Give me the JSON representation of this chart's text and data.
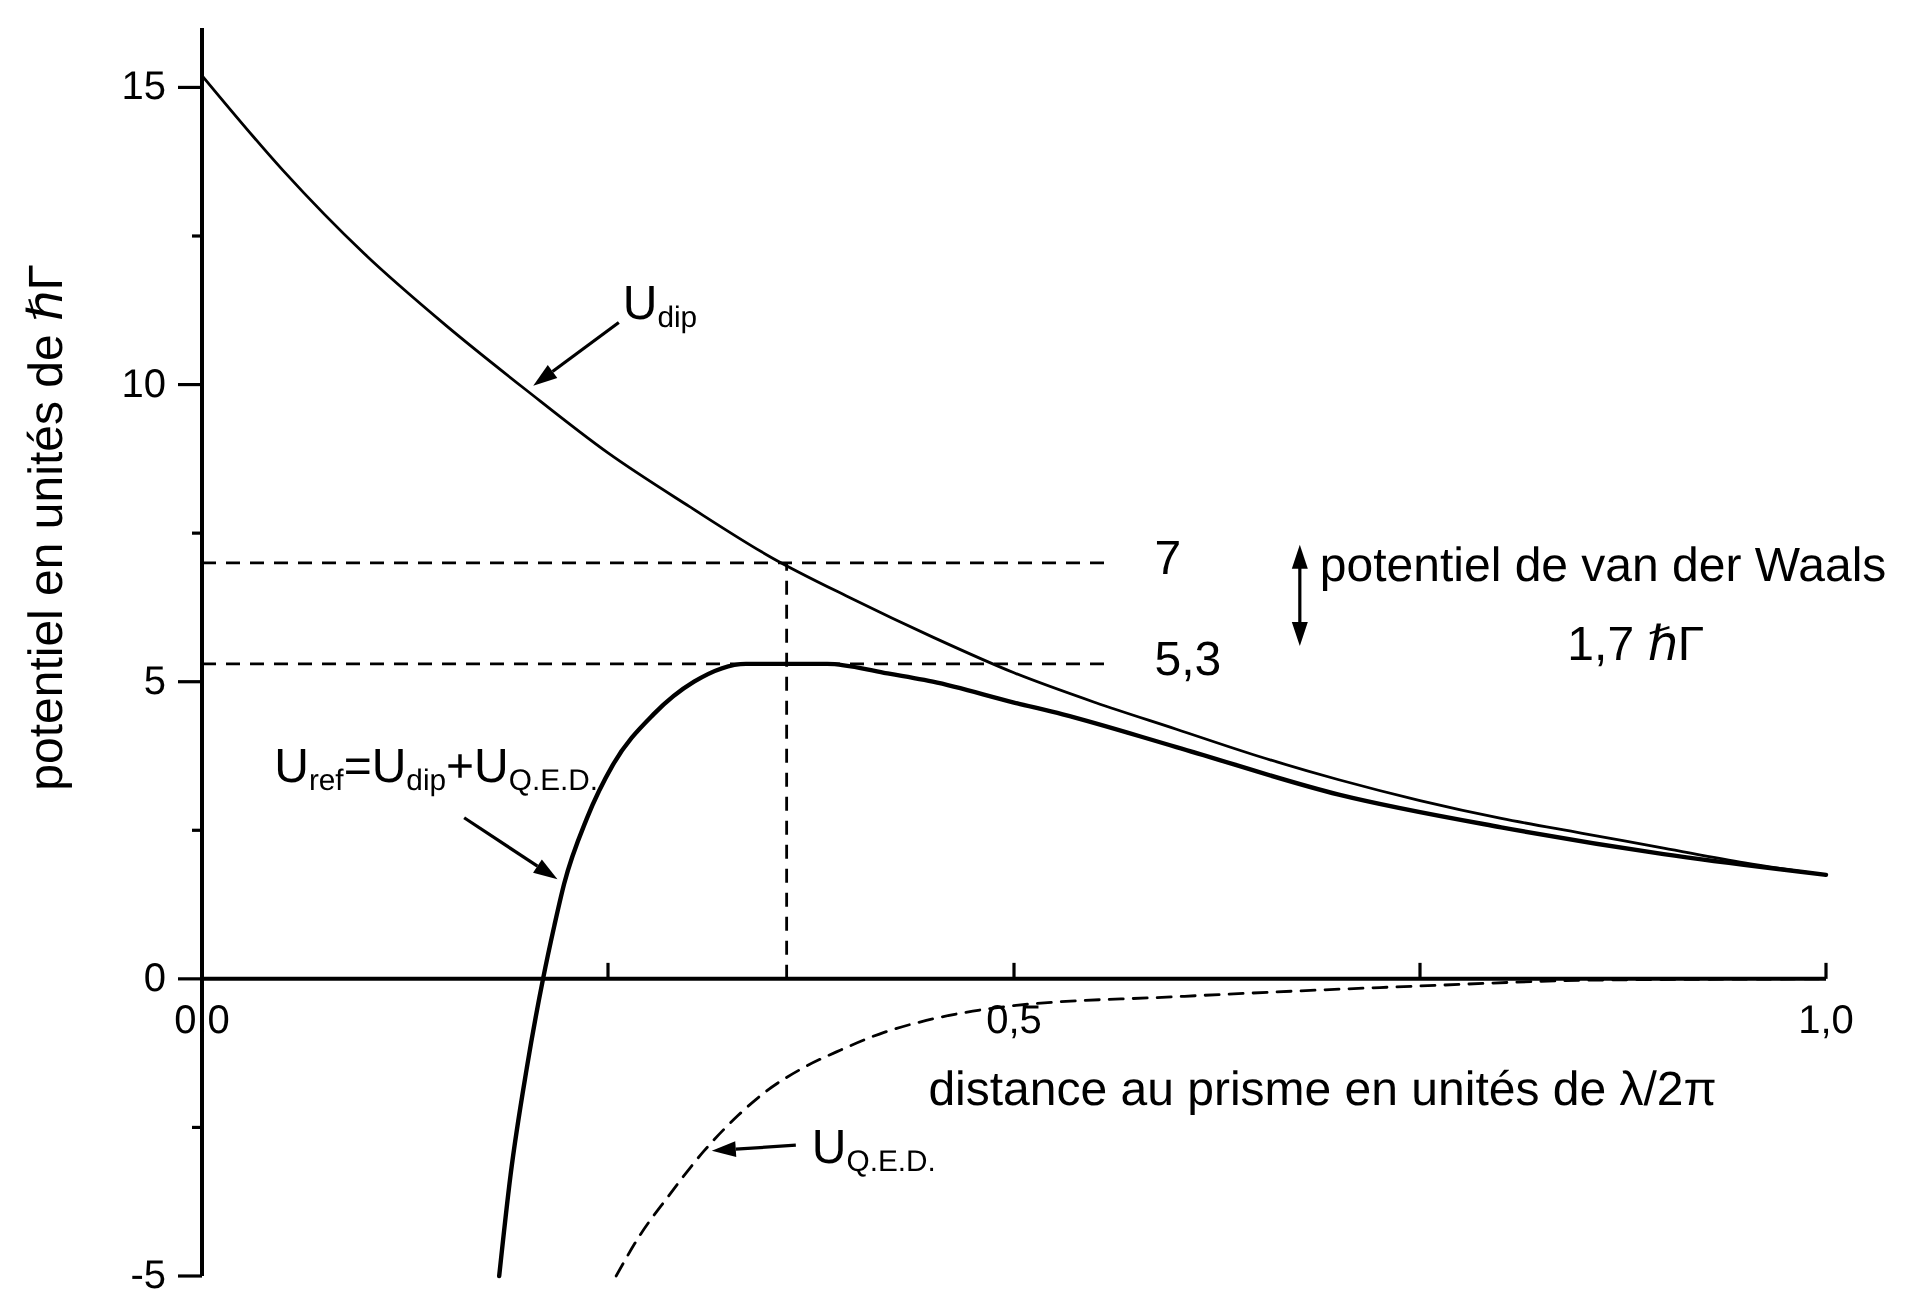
{
  "chart_data": {
    "type": "line",
    "xlabel": "distance au prisme en unités de λ/2π",
    "ylabel": "potentiel en unités de ℏΓ",
    "xlim": [
      0,
      1.0
    ],
    "xticks": [
      {
        "value": 0,
        "label": "0,0"
      },
      {
        "value": 0.25,
        "label": null
      },
      {
        "value": 0.5,
        "label": "0,5"
      },
      {
        "value": 0.75,
        "label": null
      },
      {
        "value": 1.0,
        "label": "1,0"
      }
    ],
    "ylim": [
      -5,
      16
    ],
    "yticks": [
      -5,
      {
        "value": -2.5,
        "label": null
      },
      0,
      {
        "value": 2.5,
        "label": null
      },
      5,
      {
        "value": 7.5,
        "label": null
      },
      10,
      {
        "value": 12.5,
        "label": null
      },
      15
    ],
    "series": [
      {
        "name": "U$_{dip}$",
        "color": "#000000",
        "x": [
          0,
          0.05,
          0.1,
          0.15,
          0.2,
          0.25,
          0.3,
          0.35,
          0.4,
          0.45,
          0.5,
          0.55,
          0.6,
          0.65,
          0.7,
          0.75,
          0.8,
          0.85,
          0.9,
          0.95,
          1.0
        ],
        "values": [
          15.2,
          13.6,
          12.2,
          11.0,
          9.9,
          8.85,
          7.95,
          7.1,
          6.4,
          5.75,
          5.15,
          4.65,
          4.2,
          3.75,
          3.35,
          3.0,
          2.7,
          2.45,
          2.2,
          1.95,
          1.75
        ]
      },
      {
        "name": "U$_{ref}$=U$_{dip}$+U$_{Q.E.D.}$",
        "color": "#000000",
        "x": [
          0.183,
          0.19,
          0.2,
          0.21,
          0.217,
          0.223,
          0.237,
          0.253,
          0.278,
          0.303,
          0.335,
          0.36,
          0.385,
          0.42,
          0.45,
          0.5,
          0.53,
          0.6,
          0.7,
          0.8,
          0.9,
          1.0
        ],
        "values": [
          -5.0,
          -3.3,
          -1.5,
          0.0,
          0.9,
          1.6,
          2.7,
          3.6,
          4.45,
          5.0,
          5.3,
          5.3,
          5.3,
          5.15,
          5.0,
          4.65,
          4.45,
          3.9,
          3.1,
          2.55,
          2.1,
          1.75
        ]
      },
      {
        "name": "U$_{Q.E.D.}$",
        "color": "#000000",
        "line_style": "dashed",
        "x": [
          0.255,
          0.27,
          0.286,
          0.309,
          0.33,
          0.347,
          0.37,
          0.393,
          0.42,
          0.446,
          0.5,
          0.6,
          0.75,
          0.86,
          1.0
        ],
        "values": [
          -5.0,
          -4.3,
          -3.7,
          -2.9,
          -2.3,
          -1.9,
          -1.5,
          -1.2,
          -0.9,
          -0.7,
          -0.45,
          -0.3,
          -0.12,
          -0.02,
          0.0
        ]
      }
    ],
    "ref_lines": [
      {
        "axis": "y",
        "value": 7,
        "label": "7",
        "line_style": "dashed"
      },
      {
        "axis": "y",
        "value": 5.3,
        "label": "5,3",
        "line_style": "dashed"
      },
      {
        "axis": "x",
        "value": 0.36,
        "line_style": "dashed"
      }
    ],
    "annotations": [
      "potentiel de van der Waals",
      "1,7 ℏΓ"
    ]
  }
}
